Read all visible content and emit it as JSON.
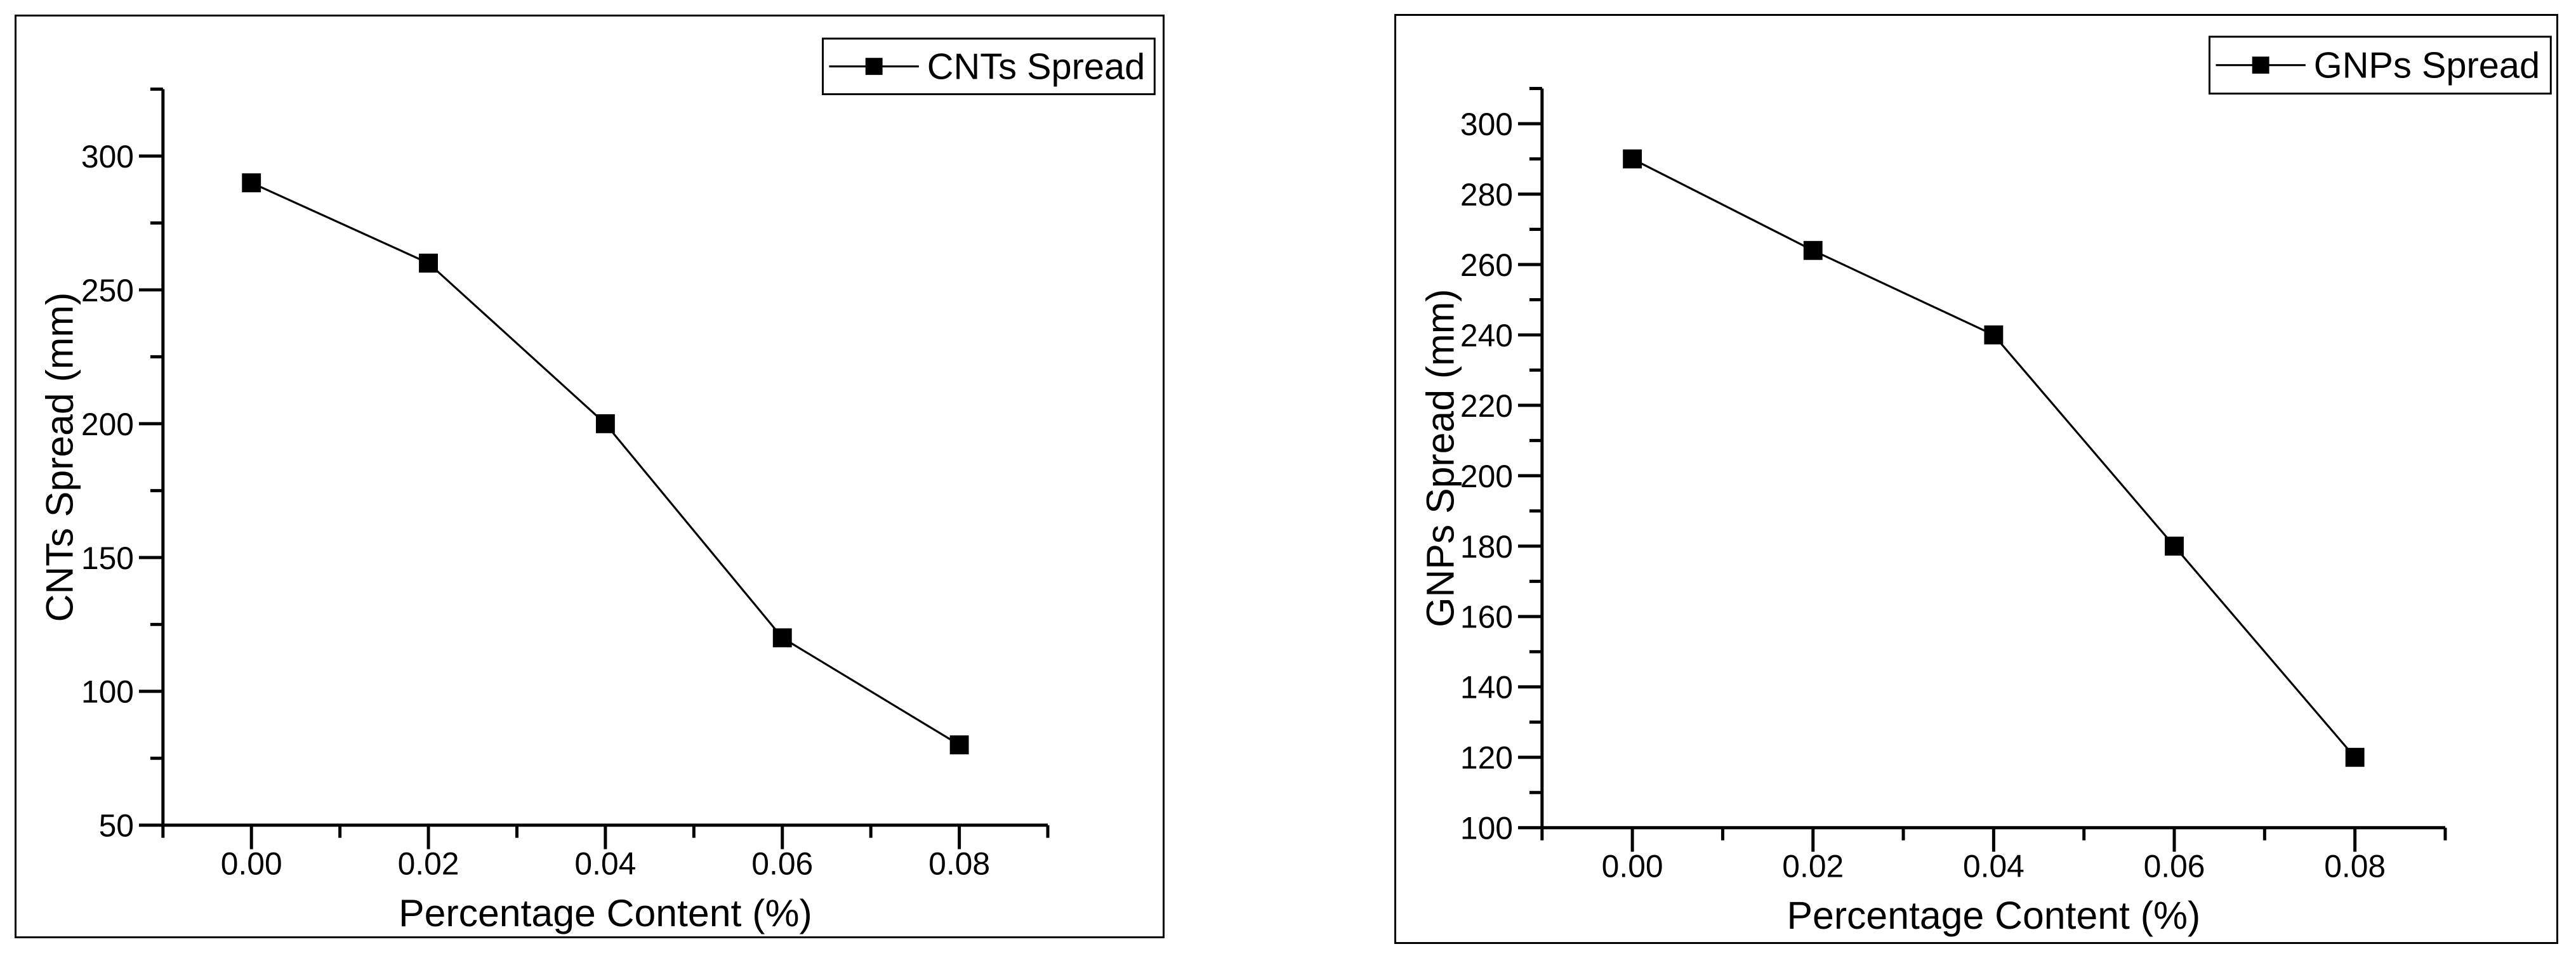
{
  "figure": {
    "background_color": "#ffffff",
    "frame_color": "#000000",
    "series_color": "#000000"
  },
  "chart_data": [
    {
      "type": "line",
      "title": "",
      "xlabel": "Percentage Content (%)",
      "ylabel": "CNTs Spread (mm)",
      "legend": {
        "position": "top-right",
        "label": "CNTs Spread",
        "marker": "filled-square"
      },
      "series": [
        {
          "name": "CNTs Spread",
          "x": [
            0.0,
            0.02,
            0.04,
            0.06,
            0.08
          ],
          "y": [
            290,
            260,
            200,
            120,
            80
          ]
        }
      ],
      "xlim": [
        -0.01,
        0.09
      ],
      "ylim": [
        50,
        325
      ],
      "x_major_ticks": [
        0.0,
        0.02,
        0.04,
        0.06,
        0.08
      ],
      "x_tick_labels": [
        "0.00",
        "0.02",
        "0.04",
        "0.06",
        "0.08"
      ],
      "x_minor_step": 0.01,
      "y_major_ticks": [
        50,
        100,
        150,
        200,
        250,
        300
      ],
      "y_tick_labels": [
        "50",
        "100",
        "150",
        "200",
        "250",
        "300"
      ],
      "y_minor_step": 25,
      "marker": "filled-square",
      "line_color": "#000000",
      "grid": false
    },
    {
      "type": "line",
      "title": "",
      "xlabel": "Percentage Content (%)",
      "ylabel": "GNPs Spread (mm)",
      "legend": {
        "position": "top-right",
        "label": "GNPs Spread",
        "marker": "filled-square"
      },
      "series": [
        {
          "name": "GNPs Spread",
          "x": [
            0.0,
            0.02,
            0.04,
            0.06,
            0.08
          ],
          "y": [
            290,
            264,
            240,
            180,
            120
          ]
        }
      ],
      "xlim": [
        -0.01,
        0.09
      ],
      "ylim": [
        100,
        310
      ],
      "x_major_ticks": [
        0.0,
        0.02,
        0.04,
        0.06,
        0.08
      ],
      "x_tick_labels": [
        "0.00",
        "0.02",
        "0.04",
        "0.06",
        "0.08"
      ],
      "x_minor_step": 0.01,
      "y_major_ticks": [
        100,
        120,
        140,
        160,
        180,
        200,
        220,
        240,
        260,
        280,
        300
      ],
      "y_tick_labels": [
        "100",
        "120",
        "140",
        "160",
        "180",
        "200",
        "220",
        "240",
        "260",
        "280",
        "300"
      ],
      "y_minor_step": 10,
      "marker": "filled-square",
      "line_color": "#000000",
      "grid": false
    }
  ]
}
